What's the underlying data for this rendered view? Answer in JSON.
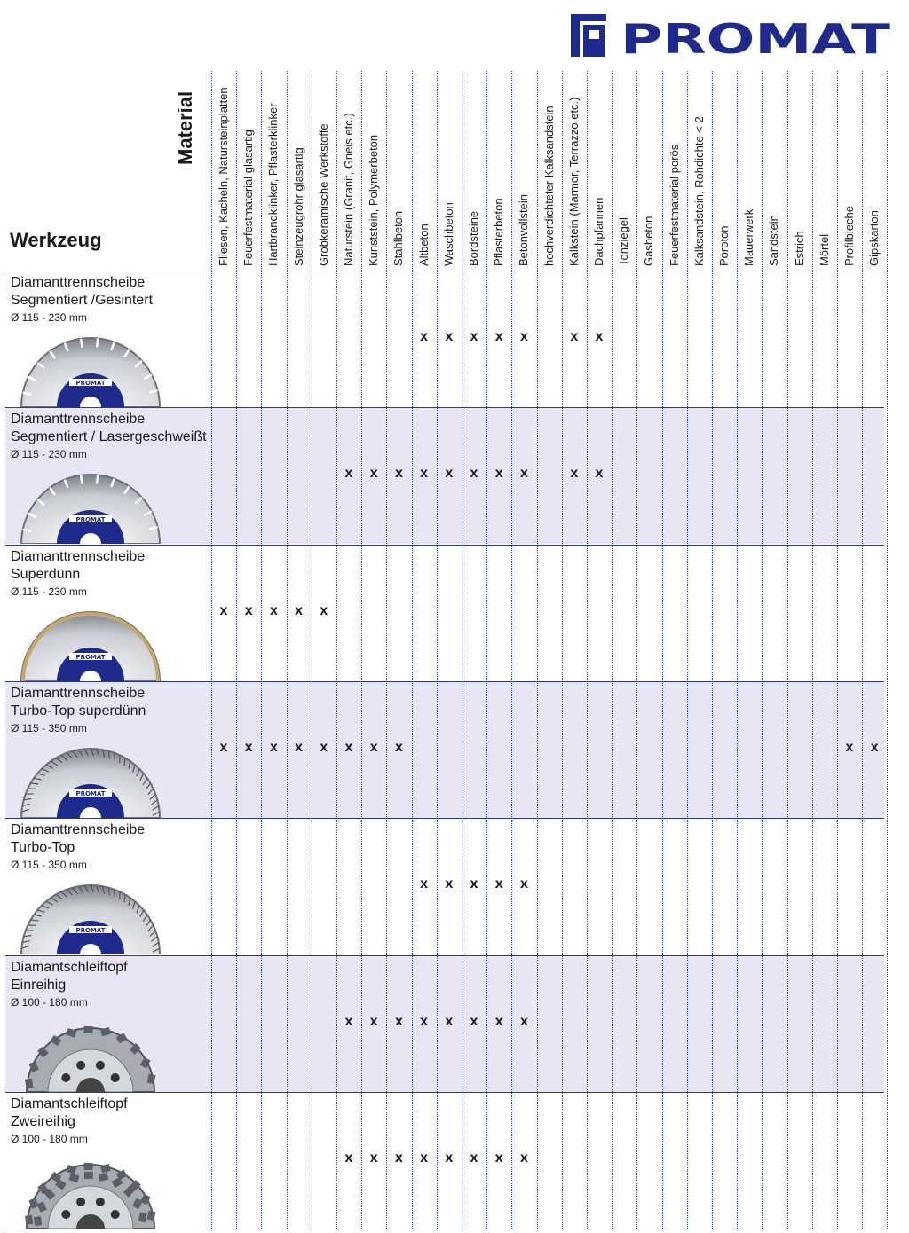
{
  "brand": {
    "name": "PROMAT",
    "color": "#1e2a8c"
  },
  "header": {
    "tool_label": "Werkzeug",
    "material_label": "Material"
  },
  "materials": [
    "Fliesen, Kacheln, Natursteinplatten",
    "Feuerfestmaterial glasartig",
    "Hartbrandklinker, Pflasterklinker",
    "Steinzeugrohr glasartig",
    "Grobkeramische Werkstoffe",
    "Naturstein (Granit, Gneis etc.)",
    "Kunststein, Polymerbeton",
    "Stahlbeton",
    "Altbeton",
    "Waschbeton",
    "Bordsteine",
    "Pflasterbeton",
    "Betonvollstein",
    "hochverdichteter Kalksandstein",
    "Kalkstein (Marmor, Terrazzo etc.)",
    "Dachpfannen",
    "Tonziegel",
    "Gasbeton",
    "Feuerfestmaterial porös",
    "Kalksandstein, Rohdichte < 2",
    "Poroton",
    "Mauerwerk",
    "Sandstein",
    "Estrich",
    "Mörtel",
    "Profilbleche",
    "Gipskarton"
  ],
  "mark_symbol": "x",
  "tools": [
    {
      "name": "Diamanttrennscheibe\nSegmentiert /Gesintert",
      "size": "Ø 115 - 230 mm",
      "thumb_icon": "segmented-disc-icon",
      "marks": [
        8,
        9,
        10,
        11,
        12,
        14,
        15
      ]
    },
    {
      "name": "Diamanttrennscheibe\nSegmentiert / Lasergeschweißt",
      "size": "Ø 115 - 230 mm",
      "thumb_icon": "segmented-disc-icon",
      "marks": [
        5,
        6,
        7,
        8,
        9,
        10,
        11,
        12,
        14,
        15
      ]
    },
    {
      "name": "Diamanttrennscheibe\nSuperdünn",
      "size": "Ø 115 - 230 mm",
      "thumb_icon": "continuous-rim-disc-icon",
      "marks": [
        0,
        1,
        2,
        3,
        4
      ]
    },
    {
      "name": "Diamanttrennscheibe\nTurbo-Top superdünn",
      "size": "Ø 115 - 350 mm",
      "thumb_icon": "turbo-disc-icon",
      "marks": [
        0,
        1,
        2,
        3,
        4,
        5,
        6,
        7,
        25,
        26
      ]
    },
    {
      "name": "Diamanttrennscheibe\nTurbo-Top",
      "size": "Ø 115 - 350 mm",
      "thumb_icon": "turbo-disc-icon",
      "marks": [
        8,
        9,
        10,
        11,
        12
      ]
    },
    {
      "name": "Diamantschleiftopf\nEinreihig",
      "size": "Ø 100 - 180 mm",
      "thumb_icon": "cup-wheel-single-icon",
      "marks": [
        5,
        6,
        7,
        8,
        9,
        10,
        11,
        12
      ]
    },
    {
      "name": "Diamantschleiftopf\nZweireihig",
      "size": "Ø 100 - 180 mm",
      "thumb_icon": "cup-wheel-double-icon",
      "marks": [
        5,
        6,
        7,
        8,
        9,
        10,
        11,
        12
      ]
    }
  ]
}
